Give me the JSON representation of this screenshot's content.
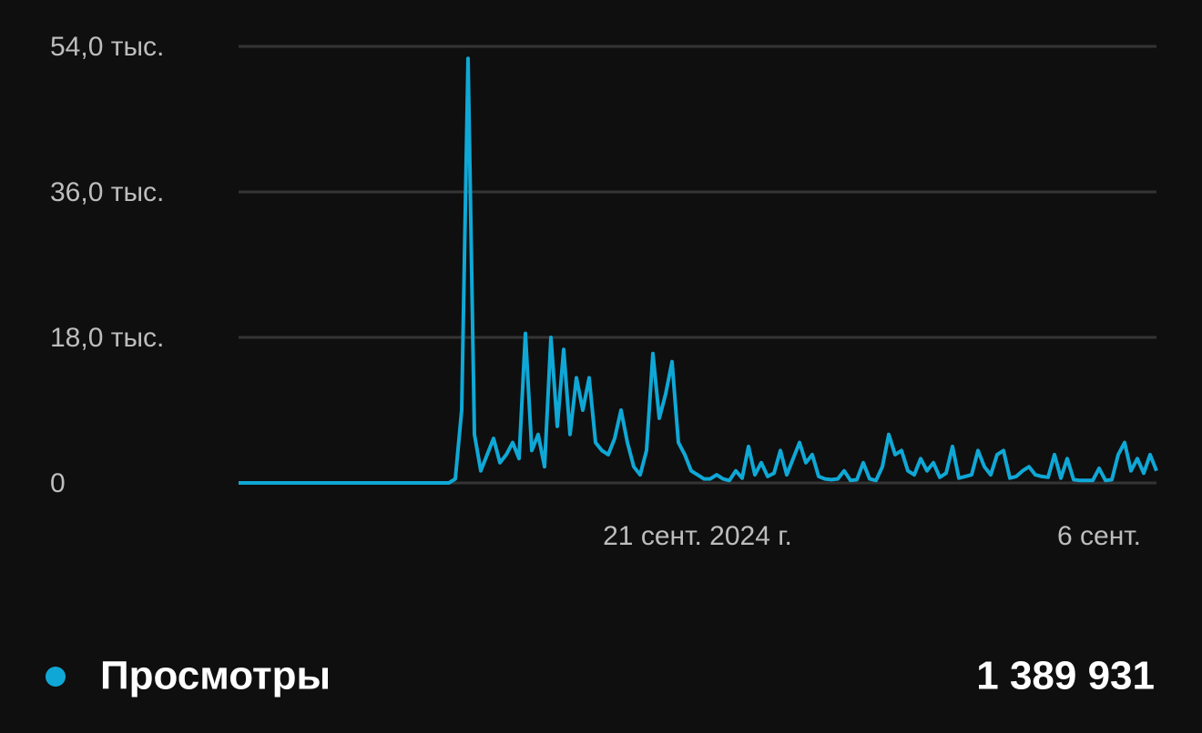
{
  "chart_data": {
    "type": "line",
    "categories": [
      null,
      null,
      null,
      null,
      null,
      null,
      null,
      null,
      null,
      null,
      null,
      null,
      null,
      null,
      null,
      null,
      null,
      null,
      null,
      null,
      null,
      null,
      null,
      null,
      null,
      null,
      null,
      null,
      null,
      null,
      null,
      null,
      null,
      null,
      null,
      null,
      null,
      null,
      null,
      null,
      null,
      null,
      null,
      null,
      null,
      null,
      null,
      null,
      null,
      null,
      null,
      null,
      null,
      null,
      null,
      null,
      null,
      null,
      null,
      null,
      null,
      null,
      null,
      null,
      null,
      null,
      null,
      null,
      null,
      null,
      null,
      null,
      "21 сент. 2024 г.",
      null,
      null,
      null,
      null,
      null,
      null,
      null,
      null,
      null,
      null,
      null,
      null,
      null,
      null,
      null,
      null,
      null,
      null,
      null,
      null,
      null,
      null,
      null,
      null,
      null,
      null,
      null,
      null,
      null,
      null,
      null,
      null,
      null,
      null,
      null,
      null,
      null,
      null,
      null,
      null,
      null,
      null,
      null,
      null,
      null,
      null,
      null,
      null,
      null,
      null,
      null,
      null,
      null,
      null,
      null,
      null,
      null,
      null,
      null,
      null,
      null,
      null,
      "6 сент.",
      null,
      null,
      null,
      null,
      null,
      null,
      null,
      null,
      null
    ],
    "series": [
      {
        "name": "Просмотры",
        "color": "#0fa8d6",
        "total": "1 389 931",
        "values": [
          0,
          0,
          0,
          0,
          0,
          0,
          0,
          0,
          0,
          0,
          0,
          0,
          0,
          0,
          0,
          0,
          0,
          0,
          0,
          0,
          0,
          0,
          0,
          0,
          0,
          0,
          0,
          0,
          0,
          0,
          0,
          0,
          0,
          0,
          500,
          9000,
          52500,
          6000,
          1500,
          3500,
          5500,
          2500,
          3500,
          5000,
          3000,
          18500,
          4000,
          6000,
          2000,
          18000,
          7000,
          16500,
          6000,
          13000,
          9000,
          13000,
          5000,
          4000,
          3500,
          5500,
          9000,
          5000,
          2000,
          1000,
          4000,
          16000,
          8000,
          11000,
          15000,
          5000,
          3500,
          1500,
          1000,
          500,
          500,
          1000,
          500,
          300,
          1500,
          600,
          4500,
          1000,
          2500,
          800,
          1200,
          4000,
          1000,
          3000,
          5000,
          2500,
          3500,
          800,
          500,
          400,
          500,
          1500,
          300,
          400,
          2500,
          500,
          300,
          2000,
          6000,
          3500,
          4000,
          1500,
          1000,
          3000,
          1500,
          2500,
          700,
          1200,
          4500,
          600,
          800,
          1000,
          4000,
          2000,
          1000,
          3500,
          4000,
          600,
          800,
          1500,
          2000,
          1000,
          800,
          700,
          3500,
          600,
          3000,
          400,
          300,
          300,
          300,
          1800,
          300,
          400,
          3500,
          5000,
          1500,
          3000,
          1200,
          3500,
          1500
        ]
      }
    ],
    "ylim": [
      0,
      54000
    ],
    "yticks": [
      0,
      {
        "value": 18000,
        "label": "18,0 тыс."
      },
      {
        "value": 36000,
        "label": "36,0 тыс."
      },
      {
        "value": 54000,
        "label": "54,0 тыс."
      }
    ],
    "grid": true
  }
}
